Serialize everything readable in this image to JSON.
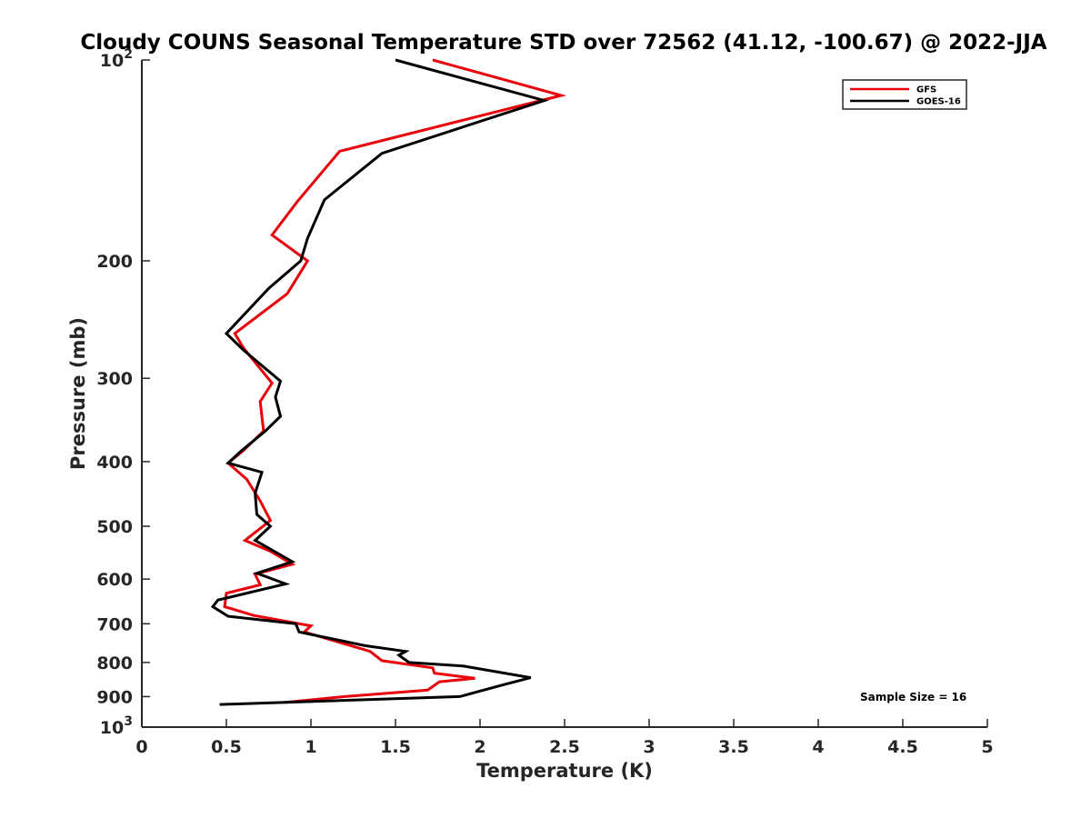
{
  "chart_data": {
    "type": "line",
    "title": "Cloudy COUNS Seasonal Temperature STD over 72562 (41.12, -100.67) @ 2022-JJA",
    "xlabel": "Temperature (K)",
    "ylabel": "Pressure (mb)",
    "xlim": [
      0,
      5
    ],
    "ylim": [
      100,
      1000
    ],
    "yscale": "log",
    "y_reversed": true,
    "x_ticks": [
      0,
      0.5,
      1,
      1.5,
      2,
      2.5,
      3,
      3.5,
      4,
      4.5,
      5
    ],
    "x_tick_labels": [
      "0",
      "0.5",
      "1",
      "1.5",
      "2",
      "2.5",
      "3",
      "3.5",
      "4",
      "4.5",
      "5"
    ],
    "y_ticks": [
      {
        "value": 100,
        "base": "10",
        "exp": "2"
      },
      {
        "value": 200,
        "label": "200"
      },
      {
        "value": 300,
        "label": "300"
      },
      {
        "value": 400,
        "label": "400"
      },
      {
        "value": 500,
        "label": "500"
      },
      {
        "value": 600,
        "label": "600"
      },
      {
        "value": 700,
        "label": "700"
      },
      {
        "value": 800,
        "label": "800"
      },
      {
        "value": 900,
        "label": "900"
      },
      {
        "value": 1000,
        "base": "10",
        "exp": "3"
      }
    ],
    "legend_position": "top-right",
    "annotation": "Sample Size = 16",
    "series": [
      {
        "name": "GFS",
        "color": "#e8000b",
        "x": [
          1.72,
          2.48,
          1.17,
          0.92,
          0.77,
          0.98,
          0.86,
          0.55,
          0.6,
          0.77,
          0.7,
          0.72,
          0.6,
          0.51,
          0.62,
          0.7,
          0.76,
          0.61,
          0.76,
          0.89,
          0.67,
          0.7,
          0.5,
          0.49,
          0.66,
          1.0,
          0.96,
          1.35,
          1.42,
          1.72,
          1.73,
          1.97,
          1.76,
          1.69,
          1.2,
          0.85
        ],
        "y": [
          100,
          113,
          137,
          163,
          183,
          200,
          224,
          257,
          270,
          305,
          325,
          360,
          385,
          402,
          425,
          458,
          490,
          525,
          545,
          570,
          590,
          612,
          630,
          660,
          680,
          705,
          720,
          770,
          795,
          815,
          830,
          845,
          855,
          880,
          900,
          918
        ]
      },
      {
        "name": "GOES-16",
        "color": "#000000",
        "x": [
          1.5,
          2.38,
          1.42,
          1.08,
          0.98,
          0.94,
          0.75,
          0.5,
          0.6,
          0.82,
          0.79,
          0.82,
          0.73,
          0.58,
          0.51,
          0.71,
          0.67,
          0.68,
          0.76,
          0.67,
          0.89,
          0.68,
          0.85,
          0.45,
          0.42,
          0.51,
          0.91,
          0.93,
          1.32,
          1.56,
          1.52,
          1.58,
          1.9,
          2.3,
          2.13,
          1.88,
          0.46
        ],
        "y": [
          100,
          115,
          138,
          162,
          185,
          200,
          220,
          257,
          272,
          303,
          320,
          342,
          360,
          387,
          402,
          415,
          446,
          480,
          500,
          525,
          565,
          588,
          610,
          645,
          660,
          682,
          700,
          720,
          755,
          770,
          780,
          800,
          810,
          843,
          865,
          900,
          925
        ]
      }
    ]
  }
}
